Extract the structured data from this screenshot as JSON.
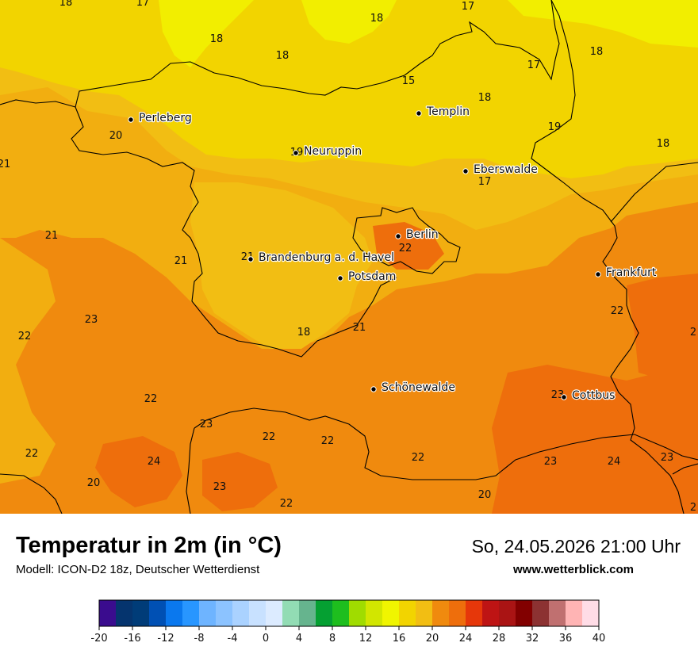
{
  "title": "Temperatur in 2m (in °C)",
  "subtitle": "Modell: ICON-D2 18z, Deutscher Wetterdienst",
  "datetime": "So, 24.05.2026 21:00 Uhr",
  "website": "www.wetterblick.com",
  "colors": {
    "t15_16": "#F2EE00",
    "t16_18": "#F2D400",
    "t18_20": "#F2BE13",
    "t20_22": "#F2AE10",
    "t22_24": "#F08A0E",
    "t24_26": "#EE6E0C",
    "background": "#ffffff"
  },
  "cities": [
    {
      "name": "Perleberg"
    },
    {
      "name": "Neuruppin"
    },
    {
      "name": "Templin"
    },
    {
      "name": "Eberswalde"
    },
    {
      "name": "Berlin"
    },
    {
      "name": "Brandenburg a. d. Havel"
    },
    {
      "name": "Potsdam"
    },
    {
      "name": "Frankfurt"
    },
    {
      "name": "Schönewalde"
    },
    {
      "name": "Cottbus"
    }
  ],
  "temperature_labels": [
    "18",
    "17",
    "18",
    "17",
    "18",
    "18",
    "15",
    "17",
    "18",
    "18",
    "19",
    "18",
    "20",
    "19",
    "21",
    "17",
    "21",
    "22",
    "21",
    "21",
    "23",
    "22",
    "18",
    "21",
    "22",
    "22",
    "23",
    "23",
    "22",
    "22",
    "22",
    "24",
    "22",
    "20",
    "23",
    "23",
    "24",
    "20",
    "23",
    "22",
    "2",
    "2"
  ],
  "legend": {
    "colors": [
      "#3A0C8E",
      "#05346E",
      "#003C78",
      "#0050B4",
      "#0A78EE",
      "#2896FF",
      "#6EB4FF",
      "#8CC3FF",
      "#AAD2FF",
      "#C8E1FF",
      "#DCEBFF",
      "#92DCB4",
      "#66B48E",
      "#05A032",
      "#1EBE1E",
      "#A0DC00",
      "#D2E600",
      "#F0F500",
      "#F2D400",
      "#F2BE13",
      "#F08A0E",
      "#EE6E0C",
      "#E6370A",
      "#BE1414",
      "#AA1414",
      "#820000",
      "#8C3232",
      "#C07070",
      "#FFB4B4",
      "#FFDCE6"
    ],
    "tick_labels": [
      "-20",
      "-16",
      "-12",
      "-8",
      "-4",
      "0",
      "4",
      "8",
      "12",
      "16",
      "20",
      "24",
      "28",
      "32",
      "36",
      "40"
    ]
  }
}
